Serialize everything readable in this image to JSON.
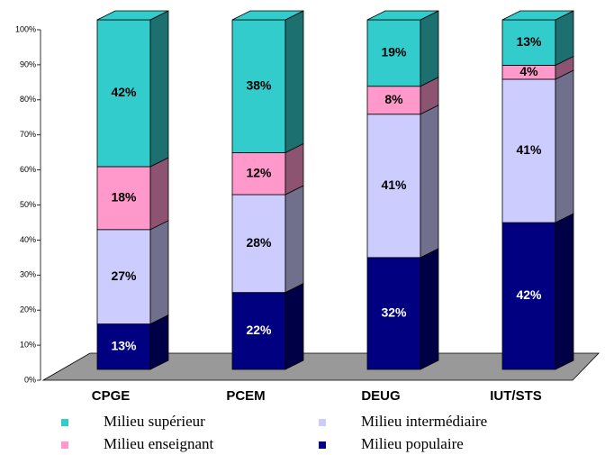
{
  "chart_data": {
    "type": "bar3d_stacked",
    "categories": [
      "CPGE",
      "PCEM",
      "DEUG",
      "IUT/STS"
    ],
    "series": [
      {
        "name": "Milieu populaire",
        "color": "#000080",
        "values": [
          13,
          22,
          32,
          42
        ],
        "value_labels": [
          "13%",
          "22%",
          "32%",
          "42%"
        ]
      },
      {
        "name": "Milieu intermédiaire",
        "color": "#ccccff",
        "values": [
          27,
          28,
          41,
          41
        ],
        "value_labels": [
          "27%",
          "28%",
          "41%",
          "41%"
        ]
      },
      {
        "name": "Milieu enseignant",
        "color": "#ff99cc",
        "values": [
          18,
          12,
          8,
          4
        ],
        "value_labels": [
          "18%",
          "12%",
          "8%",
          "4%"
        ]
      },
      {
        "name": "Milieu supérieur",
        "color": "#33cccc",
        "values": [
          42,
          38,
          19,
          13
        ],
        "value_labels": [
          "42%",
          "38%",
          "19%",
          "13%"
        ]
      }
    ],
    "ylim": [
      0,
      100
    ],
    "yticks": [
      {
        "value": 0,
        "label": "0%"
      },
      {
        "value": 10,
        "label": "10%"
      },
      {
        "value": 20,
        "label": "20%"
      },
      {
        "value": 30,
        "label": "30%"
      },
      {
        "value": 40,
        "label": "40%"
      },
      {
        "value": 50,
        "label": "50%"
      },
      {
        "value": 60,
        "label": "60%"
      },
      {
        "value": 70,
        "label": "70%"
      },
      {
        "value": 80,
        "label": "80%"
      },
      {
        "value": 90,
        "label": "90%"
      },
      {
        "value": 100,
        "label": "100%"
      }
    ]
  }
}
